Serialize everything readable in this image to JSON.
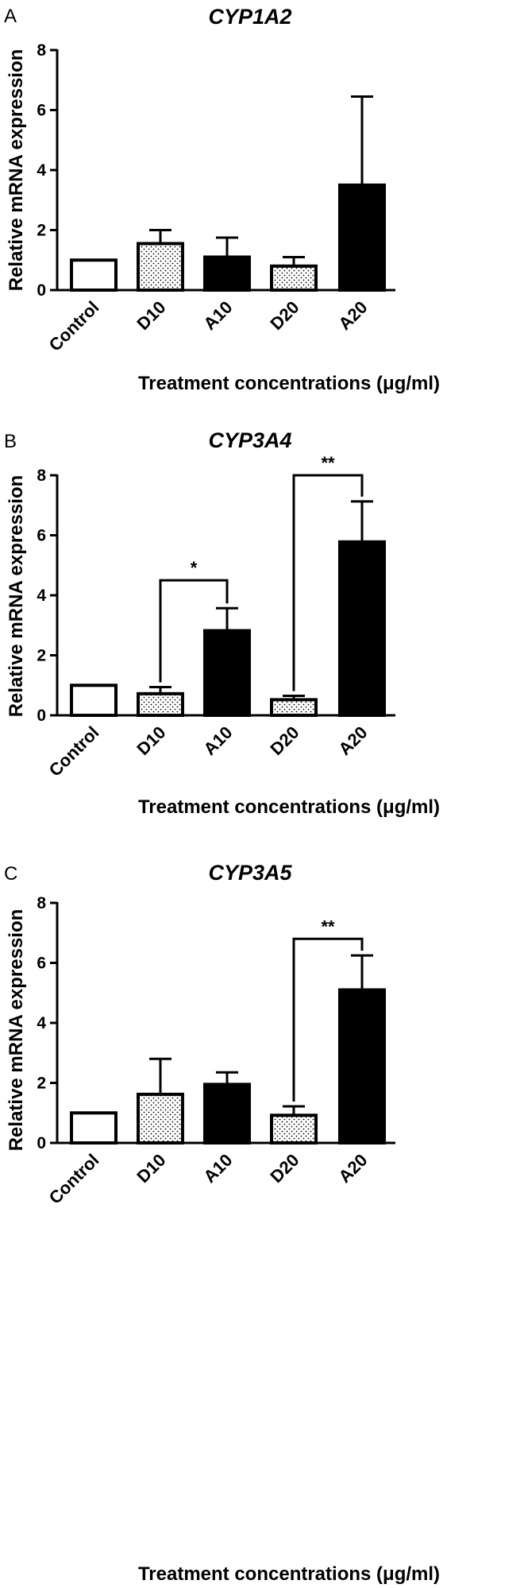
{
  "chart_data": [
    {
      "type": "bar",
      "panel": "A",
      "title": "CYP1A2",
      "xlabel": "Treatment concentrations (μg/ml)",
      "ylabel": "Relative mRNA expression",
      "ylim": [
        0,
        8
      ],
      "yticks": [
        0,
        2,
        4,
        6,
        8
      ],
      "categories": [
        "Control",
        "D10",
        "A10",
        "D20",
        "A20"
      ],
      "values": [
        1.0,
        1.55,
        1.1,
        0.8,
        3.5
      ],
      "errors": [
        0,
        0.45,
        0.65,
        0.3,
        2.95
      ],
      "fills": [
        "white",
        "dotted",
        "black",
        "dotted",
        "black"
      ],
      "significance": []
    },
    {
      "type": "bar",
      "panel": "B",
      "title": "CYP3A4",
      "xlabel": "Treatment concentrations (μg/ml)",
      "ylabel": "Relative mRNA expression",
      "ylim": [
        0,
        8
      ],
      "yticks": [
        0,
        2,
        4,
        6,
        8
      ],
      "categories": [
        "Control",
        "D10",
        "A10",
        "D20",
        "A20"
      ],
      "values": [
        1.0,
        0.72,
        2.82,
        0.52,
        5.78
      ],
      "errors": [
        0,
        0.22,
        0.75,
        0.13,
        1.35
      ],
      "fills": [
        "white",
        "dotted",
        "black",
        "dotted",
        "black"
      ],
      "significance": [
        {
          "from": 1,
          "to": 2,
          "y": 4.5,
          "label": "*"
        },
        {
          "from": 3,
          "to": 4,
          "y": 8.0,
          "label": "**"
        }
      ]
    },
    {
      "type": "bar",
      "panel": "C",
      "title": "CYP3A5",
      "xlabel": "Treatment concentrations (μg/ml)",
      "ylabel": "Relative mRNA expression",
      "ylim": [
        0,
        8
      ],
      "yticks": [
        0,
        2,
        4,
        6,
        8
      ],
      "categories": [
        "Control",
        "D10",
        "A10",
        "D20",
        "A20"
      ],
      "values": [
        1.0,
        1.62,
        1.95,
        0.92,
        5.1
      ],
      "errors": [
        0,
        1.18,
        0.4,
        0.3,
        1.15
      ],
      "fills": [
        "white",
        "dotted",
        "black",
        "dotted",
        "black"
      ],
      "significance": [
        {
          "from": 3,
          "to": 4,
          "y": 6.8,
          "label": "**"
        }
      ]
    }
  ]
}
